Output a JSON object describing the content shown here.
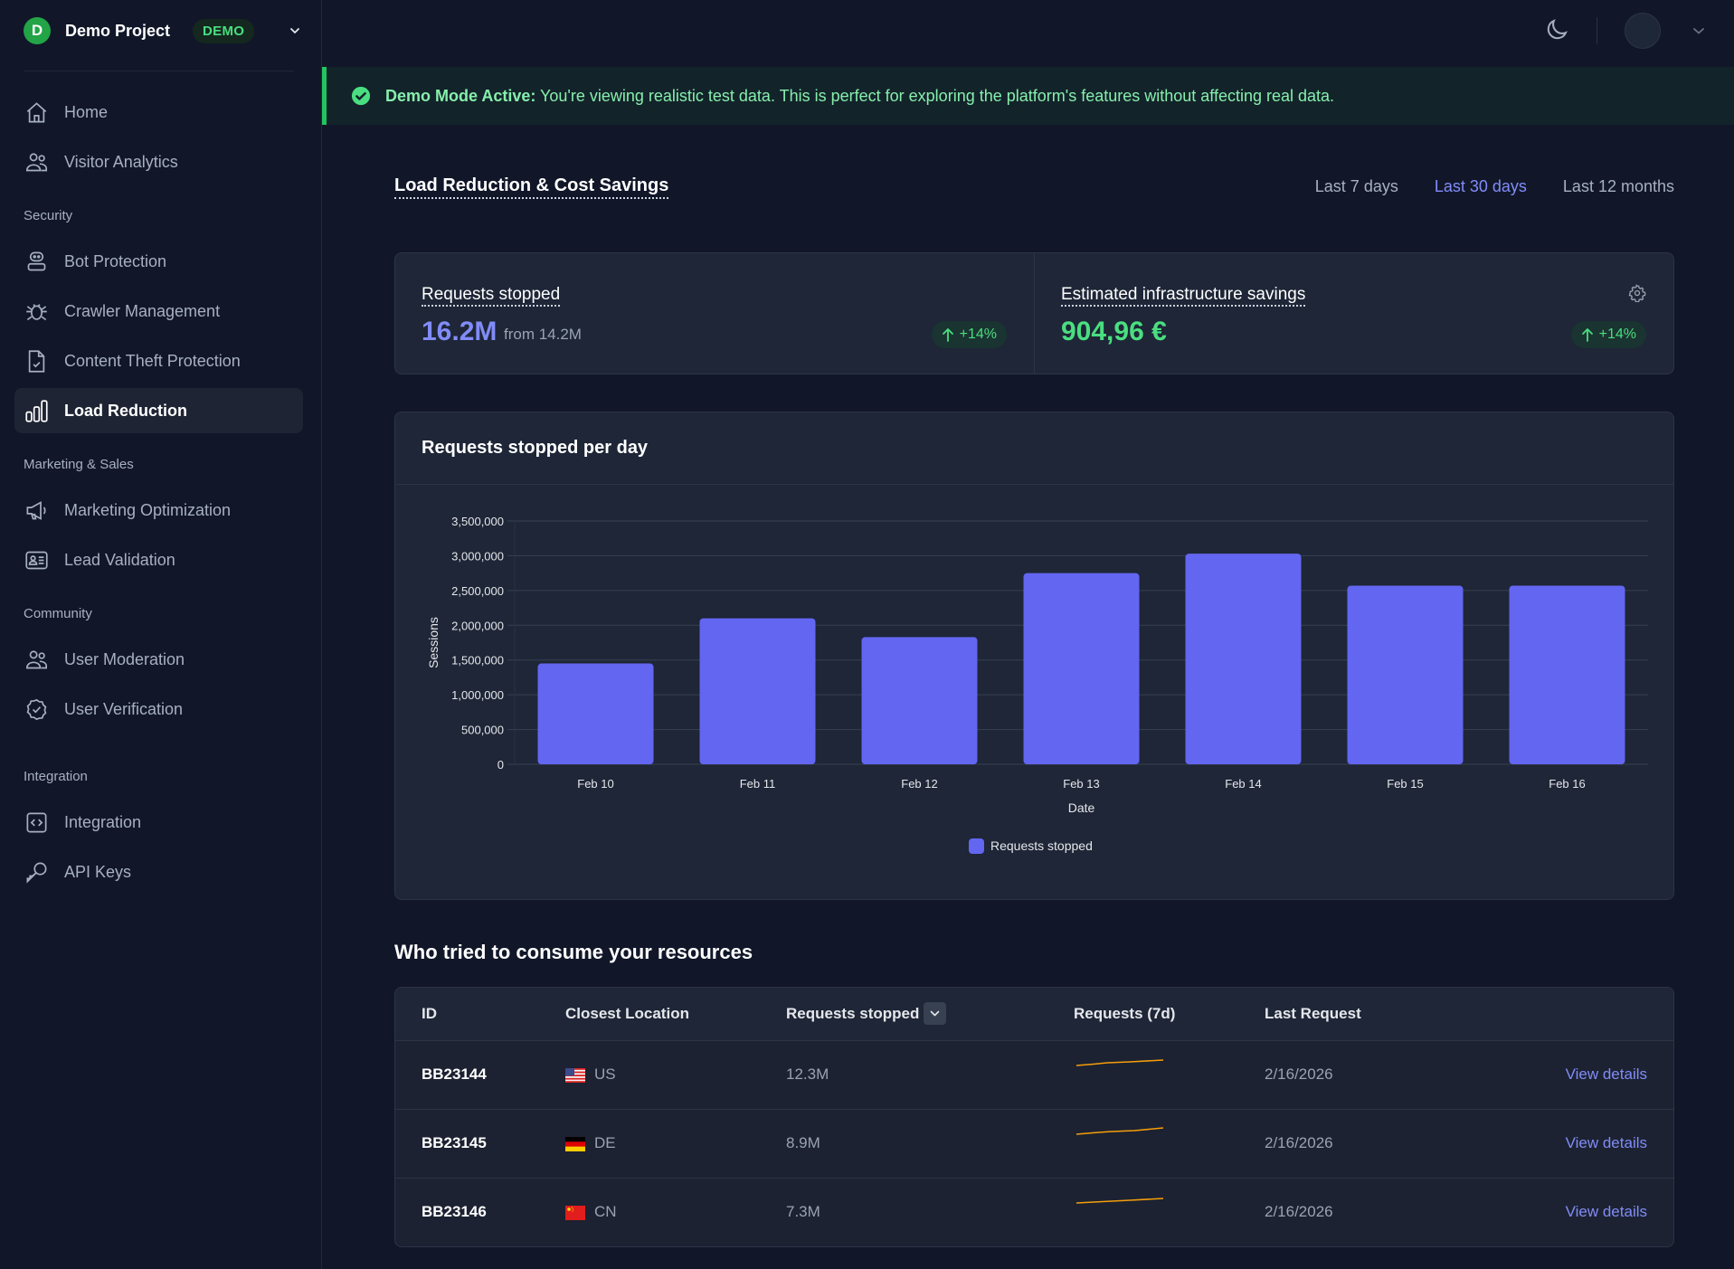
{
  "project": {
    "initial": "D",
    "name": "Demo Project",
    "badge": "DEMO"
  },
  "sidebar": {
    "items": [
      {
        "label": "Home",
        "icon": "home-icon"
      },
      {
        "label": "Visitor Analytics",
        "icon": "users-icon"
      },
      {
        "section": "Security"
      },
      {
        "label": "Bot Protection",
        "icon": "robot-icon"
      },
      {
        "label": "Crawler Management",
        "icon": "bug-icon"
      },
      {
        "label": "Content Theft Protection",
        "icon": "document-check-icon"
      },
      {
        "label": "Load Reduction",
        "icon": "bar-chart-icon",
        "active": true
      },
      {
        "section": "Marketing & Sales"
      },
      {
        "label": "Marketing Optimization",
        "icon": "megaphone-icon"
      },
      {
        "label": "Lead Validation",
        "icon": "id-card-icon"
      },
      {
        "section": "Community"
      },
      {
        "label": "User Moderation",
        "icon": "users-icon"
      },
      {
        "label": "User Verification",
        "icon": "badge-check-icon"
      },
      {
        "section": "Integration"
      },
      {
        "label": "Integration",
        "icon": "code-icon"
      },
      {
        "label": "API Keys",
        "icon": "key-icon"
      }
    ]
  },
  "banner": {
    "strong": "Demo Mode Active:",
    "text": " You're viewing realistic test data. This is perfect for exploring the platform's features without affecting real data."
  },
  "page": {
    "title": "Load Reduction & Cost Savings",
    "ranges": [
      "Last 7 days",
      "Last 30 days",
      "Last 12 months"
    ],
    "active_range": "Last 30 days"
  },
  "stats": {
    "requests": {
      "label": "Requests stopped",
      "value": "16.2M",
      "from": "from 14.2M",
      "delta": "+14%"
    },
    "savings": {
      "label": "Estimated infrastructure savings",
      "value": "904,96 €",
      "delta": "+14%"
    }
  },
  "chart": {
    "title": "Requests stopped per day"
  },
  "chart_data": {
    "type": "bar",
    "title": "Requests stopped per day",
    "categories": [
      "Feb 10",
      "Feb 11",
      "Feb 12",
      "Feb 13",
      "Feb 14",
      "Feb 15",
      "Feb 16"
    ],
    "series": [
      {
        "name": "Requests stopped",
        "color": "#6366f1",
        "values": [
          1450000,
          2100000,
          1830000,
          2750000,
          3030000,
          2570000,
          2570000
        ]
      }
    ],
    "xlabel": "Date",
    "ylabel": "Sessions",
    "ylim": [
      0,
      3500000
    ],
    "yticks": [
      "0",
      "500,000",
      "1,000,000",
      "1,500,000",
      "2,000,000",
      "2,500,000",
      "3,000,000",
      "3,500,000"
    ],
    "ytick_values": [
      0,
      500000,
      1000000,
      1500000,
      2000000,
      2500000,
      3000000,
      3500000
    ],
    "grid": true,
    "legend": "bottom-center"
  },
  "table": {
    "title": "Who tried to consume your resources",
    "headers": {
      "id": "ID",
      "location": "Closest Location",
      "requests": "Requests stopped",
      "spark": "Requests (7d)",
      "last": "Last Request"
    },
    "rows": [
      {
        "id": "BB23144",
        "country": "US",
        "requests": "12.3M",
        "last": "2/16/2026",
        "action": "View details"
      },
      {
        "id": "BB23145",
        "country": "DE",
        "requests": "8.9M",
        "last": "2/16/2026",
        "action": "View details"
      },
      {
        "id": "BB23146",
        "country": "CN",
        "requests": "7.3M",
        "last": "2/16/2026",
        "action": "View details"
      }
    ],
    "spark_color": "#f59e0b"
  },
  "colors": {
    "accent": "#818cf8",
    "bar": "#6366f1",
    "success": "#4ade80"
  }
}
